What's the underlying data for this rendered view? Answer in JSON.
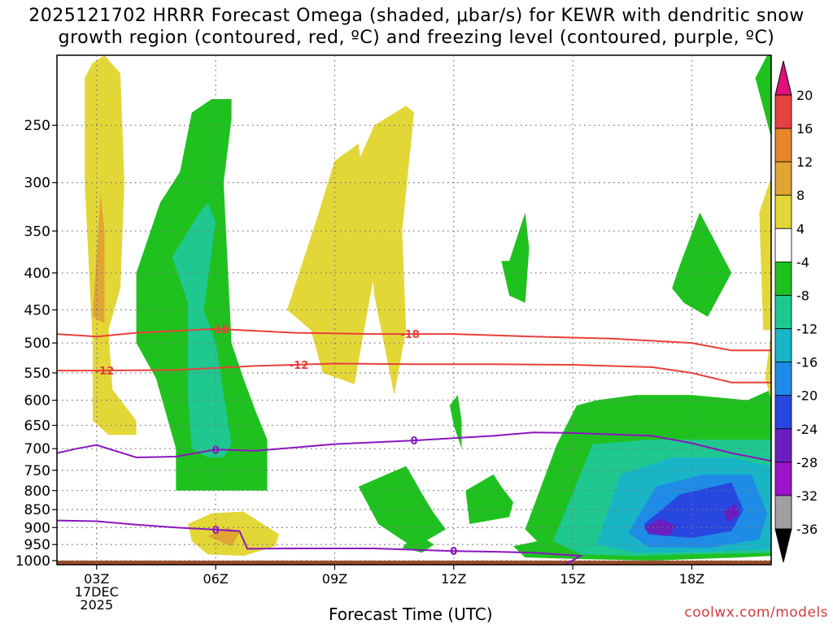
{
  "title": {
    "line1": "2025121702 HRRR Forecast Omega (shaded, μbar/s) for KEWR with dendritic snow",
    "line2": "growth region (contoured, red, ºC) and freezing level (contoured, purple, ºC)"
  },
  "credit": "coolwx.com/models",
  "chart_data": {
    "type": "heatmap",
    "xlabel": "Forecast Time (UTC)",
    "ylabel": "",
    "x_ticks": [
      {
        "hour": 3,
        "lines": [
          "03Z",
          "17DEC",
          "2025"
        ]
      },
      {
        "hour": 6,
        "lines": [
          "06Z"
        ]
      },
      {
        "hour": 9,
        "lines": [
          "09Z"
        ]
      },
      {
        "hour": 12,
        "lines": [
          "12Z"
        ]
      },
      {
        "hour": 15,
        "lines": [
          "15Z"
        ]
      },
      {
        "hour": 18,
        "lines": [
          "18Z"
        ]
      }
    ],
    "xlim": [
      2,
      20
    ],
    "y_ticks": [
      250,
      300,
      350,
      400,
      450,
      500,
      550,
      600,
      650,
      700,
      750,
      800,
      850,
      900,
      950,
      1000
    ],
    "ylim": [
      1013,
      200
    ],
    "yscale": "log-pressure",
    "colorbar": {
      "levels": [
        20,
        16,
        12,
        8,
        4,
        -4,
        -8,
        -12,
        -16,
        -20,
        -24,
        -28,
        -32,
        -36
      ],
      "colors": [
        "#e64040",
        "#e8862c",
        "#e0a533",
        "#e3d738",
        "#ffffff",
        "#1fc11f",
        "#1fc88f",
        "#18b5c6",
        "#1e8ce6",
        "#2846e0",
        "#6a1ec0",
        "#9a14c8",
        "#a0a0a0"
      ],
      "top_arrow_color": "#e0107a",
      "bottom_arrow_color": "#000000"
    },
    "omega_regions": [
      {
        "level": "4 to 8",
        "color": "#e3d738",
        "x": [
          2.7,
          2.9,
          3.2,
          3.6,
          3.7,
          3.6,
          3.3,
          3.4,
          4.0,
          4.0,
          3.3,
          2.9,
          2.9,
          2.7,
          2.7
        ],
        "y": [
          215,
          205,
          200,
          212,
          300,
          420,
          480,
          580,
          640,
          670,
          670,
          640,
          500,
          300,
          215
        ]
      },
      {
        "level": "8 to 12",
        "color": "#e0a533",
        "x": [
          2.9,
          3.1,
          3.2,
          3.2,
          2.9
        ],
        "y": [
          460,
          310,
          350,
          470,
          460
        ]
      },
      {
        "level": "-4 to -8",
        "color": "#1fc11f",
        "x": [
          4.0,
          4.6,
          5.1,
          5.4,
          5.9,
          6.4,
          6.4,
          6.2,
          6.4,
          6.7,
          7.0,
          7.3,
          7.3,
          5.0,
          5.0,
          4.5,
          4.0,
          4.0
        ],
        "y": [
          400,
          320,
          290,
          240,
          230,
          230,
          245,
          300,
          500,
          560,
          620,
          680,
          800,
          800,
          700,
          560,
          500,
          400
        ]
      },
      {
        "level": "-8 to -12",
        "color": "#1fc88f",
        "x": [
          4.9,
          5.6,
          5.8,
          6.0,
          5.7,
          6.0,
          6.1,
          6.2,
          6.4,
          6.2,
          5.8,
          5.4,
          5.3,
          5.3,
          4.9
        ],
        "y": [
          380,
          330,
          320,
          340,
          450,
          500,
          540,
          590,
          690,
          720,
          720,
          700,
          600,
          440,
          380
        ]
      },
      {
        "level": "4 to 8",
        "color": "#e3d738",
        "x": [
          7.8,
          8.6,
          9.0,
          9.6,
          10.0,
          9.5,
          8.7,
          8.4,
          7.8
        ],
        "y": [
          450,
          330,
          280,
          265,
          400,
          570,
          550,
          480,
          450
        ]
      },
      {
        "level": "4 to 8",
        "color": "#e3d738",
        "x": [
          9.6,
          10.0,
          10.8,
          11.0,
          10.7,
          10.8,
          10.5,
          10.0,
          9.8,
          9.6
        ],
        "y": [
          280,
          250,
          235,
          240,
          350,
          480,
          590,
          430,
          330,
          280
        ]
      },
      {
        "level": "-4 to -8",
        "color": "#1fc11f",
        "x": [
          13.4,
          13.8,
          13.9,
          13.8,
          13.4,
          13.2
        ],
        "y": [
          385,
          330,
          370,
          440,
          430,
          385
        ]
      },
      {
        "level": "-4 to -8",
        "color": "#1fc11f",
        "x": [
          17.7,
          18.2,
          19.0,
          18.4,
          17.8,
          17.5,
          17.7
        ],
        "y": [
          390,
          330,
          400,
          460,
          440,
          420,
          390
        ]
      },
      {
        "level": "4 to 8",
        "color": "#e3d738",
        "x": [
          5.3,
          5.9,
          6.7,
          7.6,
          7.5,
          6.7,
          5.8,
          5.4,
          5.3
        ],
        "y": [
          890,
          860,
          855,
          920,
          955,
          985,
          980,
          940,
          890
        ]
      },
      {
        "level": "8 to 12",
        "color": "#e0a533",
        "x": [
          5.8,
          6.3,
          6.6,
          6.4,
          5.8
        ],
        "y": [
          925,
          900,
          915,
          955,
          925
        ]
      },
      {
        "level": "-4 to -8",
        "color": "#1fc11f",
        "x": [
          11.9,
          12.1,
          12.2,
          12.2,
          12.0,
          11.9
        ],
        "y": [
          610,
          590,
          640,
          700,
          650,
          610
        ]
      },
      {
        "level": "-4 to -8",
        "color": "#1fc11f",
        "x": [
          11.1,
          11.5,
          11.2,
          10.7,
          10.9,
          11.1
        ],
        "y": [
          920,
          950,
          975,
          960,
          935,
          920
        ]
      },
      {
        "level": "-4 to -8",
        "color": "#1fc11f",
        "x": [
          9.6,
          10.8,
          11.3,
          11.5,
          11.8,
          11.0,
          10.1,
          9.6
        ],
        "y": [
          790,
          740,
          825,
          860,
          905,
          960,
          890,
          790
        ]
      },
      {
        "level": "-4 to -8",
        "color": "#1fc11f",
        "x": [
          12.3,
          13.0,
          13.2,
          13.5,
          13.4,
          12.4,
          12.3
        ],
        "y": [
          800,
          760,
          790,
          830,
          870,
          890,
          800
        ]
      },
      {
        "level": "-4 to -8",
        "color": "#1fc11f",
        "x": [
          13.8,
          14.6,
          15.1,
          15.6,
          16.6,
          18.0,
          19.4,
          20.0,
          20.0,
          19.2,
          17.0,
          15.2,
          13.8,
          13.5,
          14.1,
          13.8
        ],
        "y": [
          905,
          690,
          610,
          600,
          590,
          590,
          600,
          580,
          985,
          990,
          1000,
          995,
          990,
          955,
          940,
          905
        ]
      },
      {
        "level": "-8 to -12",
        "color": "#1fc88f",
        "x": [
          14.5,
          15.5,
          17.0,
          18.5,
          20.0,
          20.0,
          18.0,
          16.5,
          15.2,
          14.5
        ],
        "y": [
          940,
          690,
          680,
          680,
          680,
          975,
          980,
          985,
          980,
          940
        ]
      },
      {
        "level": "-12 to -16",
        "color": "#18b5c6",
        "x": [
          15.6,
          16.2,
          17.5,
          19.0,
          20.0,
          20.0,
          18.5,
          16.6,
          15.6
        ],
        "y": [
          950,
          760,
          720,
          720,
          740,
          965,
          972,
          976,
          950
        ]
      },
      {
        "level": "-16 to -20",
        "color": "#1e8ce6",
        "x": [
          16.4,
          17.1,
          18.3,
          19.5,
          19.9,
          19.7,
          18.4,
          16.9,
          16.4
        ],
        "y": [
          915,
          790,
          760,
          760,
          860,
          935,
          960,
          958,
          915
        ]
      },
      {
        "level": "-20 to -24",
        "color": "#2846e0",
        "x": [
          16.8,
          17.7,
          19.0,
          19.3,
          19.0,
          18.0,
          16.9,
          16.8
        ],
        "y": [
          890,
          810,
          780,
          850,
          910,
          930,
          920,
          890
        ]
      },
      {
        "level": "-24 to -28",
        "color": "#6a1ec0",
        "x": [
          16.8,
          17.2,
          17.6,
          17.4,
          16.9,
          16.8
        ],
        "y": [
          900,
          875,
          895,
          925,
          915,
          900
        ]
      },
      {
        "level": "-24 to -28",
        "color": "#6a1ec0",
        "x": [
          18.8,
          19.1,
          19.2,
          18.9,
          18.8
        ],
        "y": [
          855,
          835,
          865,
          885,
          855
        ]
      },
      {
        "level": "-4 to -8",
        "color": "#1fc11f",
        "x": [
          19.6,
          19.9,
          20.0,
          20.0,
          19.6
        ],
        "y": [
          215,
          200,
          200,
          260,
          215
        ]
      },
      {
        "level": "4 to 8",
        "color": "#e3d738",
        "x": [
          19.7,
          20.0,
          20.0,
          19.8,
          19.7
        ],
        "y": [
          330,
          295,
          480,
          480,
          330
        ]
      },
      {
        "level": "4 to 8",
        "color": "#e3d738",
        "x": [
          20.0,
          20.0,
          19.85,
          20.0
        ],
        "y": [
          480,
          600,
          560,
          480
        ]
      }
    ],
    "contours": [
      {
        "name": "-18",
        "color": "#e8403a",
        "label": "-18",
        "x": [
          2,
          3,
          4,
          6,
          8,
          10,
          12,
          14,
          16,
          18,
          19,
          20
        ],
        "y": [
          486,
          490,
          484,
          478,
          484,
          486,
          486,
          490,
          493,
          500,
          512,
          512
        ],
        "label_x": [
          6.1,
          10.9
        ]
      },
      {
        "name": "-12",
        "color": "#e8403a",
        "label": "-12",
        "x": [
          2,
          3,
          5,
          7,
          9,
          11,
          13,
          15,
          17,
          18,
          19,
          20
        ],
        "y": [
          546,
          546,
          545,
          538,
          534,
          535,
          535,
          536,
          540,
          550,
          567,
          567
        ],
        "label_x": [
          3.2,
          8.1
        ]
      },
      {
        "name": "0",
        "color": "#8a16be",
        "label": "0",
        "x": [
          2,
          2.5,
          3,
          4,
          5,
          6,
          7,
          9,
          11,
          13,
          14,
          15,
          17,
          18,
          19,
          20
        ],
        "y": [
          710,
          700,
          692,
          720,
          718,
          702,
          705,
          690,
          682,
          672,
          665,
          666,
          672,
          688,
          710,
          728
        ],
        "label_x": [
          6,
          11
        ]
      },
      {
        "name": "0",
        "color": "#8a16be",
        "label": "0",
        "x": [
          2,
          3,
          4,
          5,
          5.8,
          6.6,
          6.8,
          8,
          10,
          12,
          13,
          14,
          15.2,
          14.8
        ],
        "y": [
          880,
          882,
          892,
          900,
          905,
          910,
          963,
          962,
          962,
          970,
          972,
          975,
          985,
          1013
        ],
        "label_x": [
          6,
          12
        ]
      }
    ],
    "surface": {
      "color": "#9c4b28",
      "from": 1000,
      "to": 1013
    }
  },
  "layout_note": ""
}
